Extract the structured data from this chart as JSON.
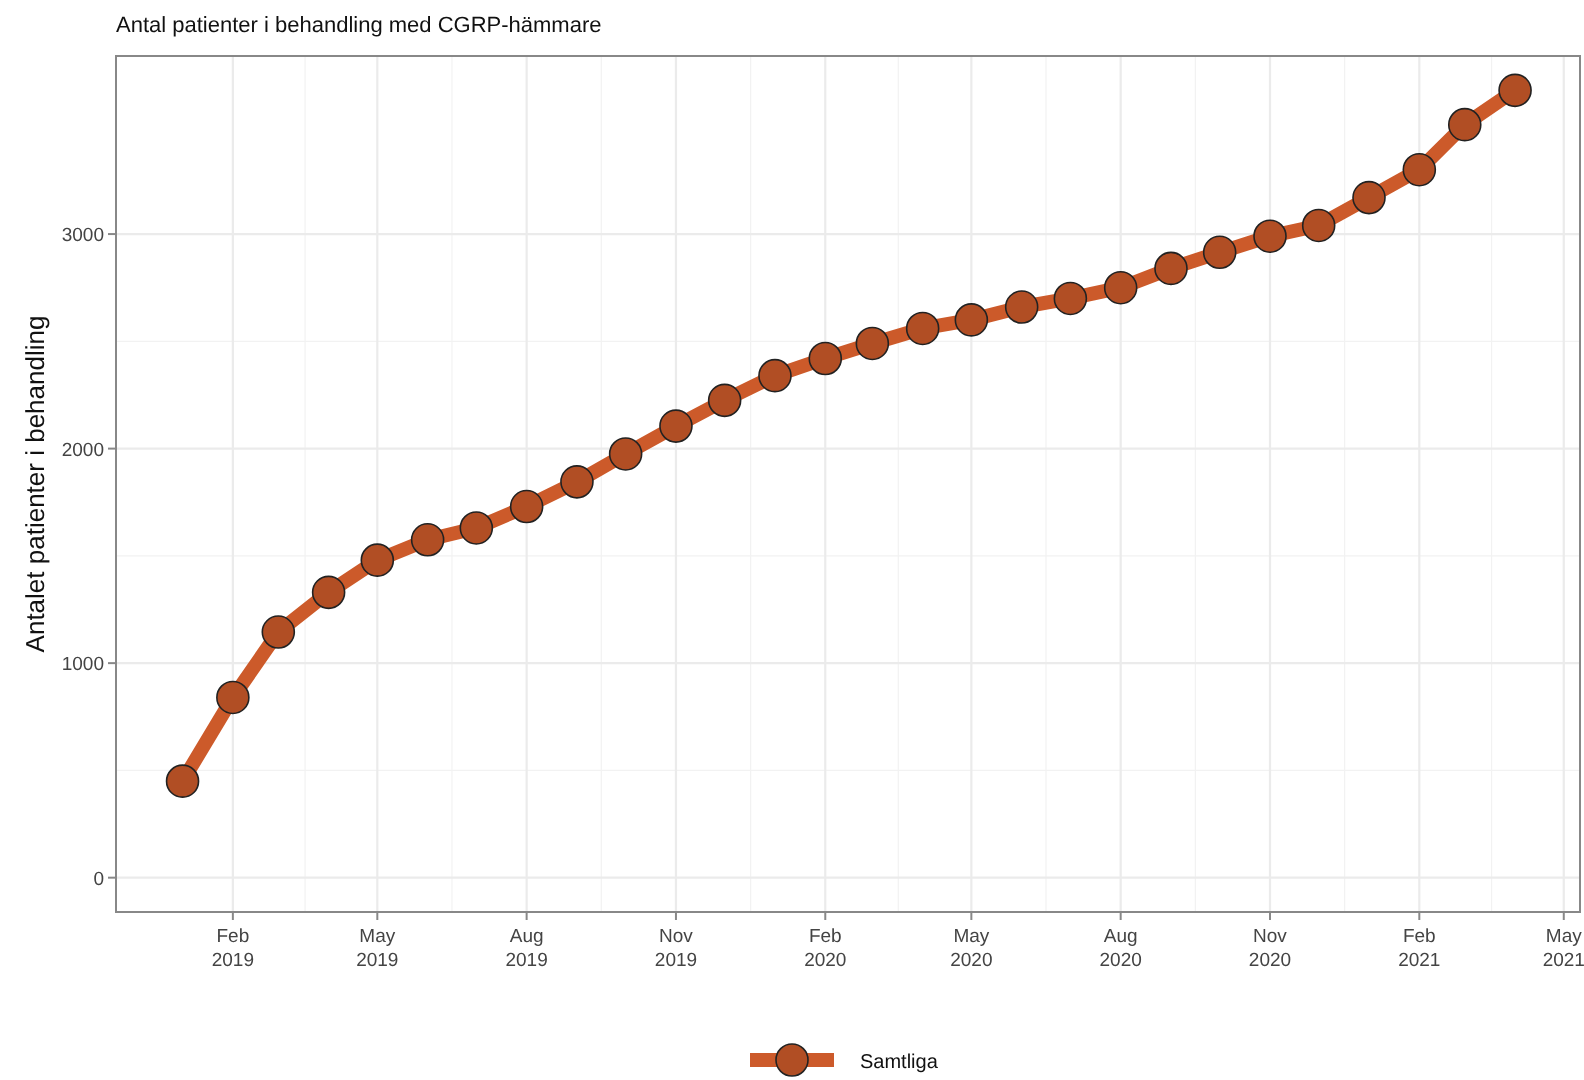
{
  "chart_data": {
    "type": "line",
    "title": "Antal patienter i behandling med CGRP-hämmare",
    "ylabel": "Antalet patienter i behandling",
    "x": [
      "2019-01",
      "2019-02",
      "2019-03",
      "2019-04",
      "2019-05",
      "2019-06",
      "2019-07",
      "2019-08",
      "2019-09",
      "2019-10",
      "2019-11",
      "2019-12",
      "2020-01",
      "2020-02",
      "2020-03",
      "2020-04",
      "2020-05",
      "2020-06",
      "2020-07",
      "2020-08",
      "2020-09",
      "2020-10",
      "2020-11",
      "2020-12",
      "2021-01",
      "2021-02",
      "2021-03",
      "2021-04"
    ],
    "series": [
      {
        "name": "Samtliga",
        "color": "#cc5a2a",
        "values": [
          450,
          840,
          1145,
          1330,
          1480,
          1575,
          1630,
          1730,
          1845,
          1975,
          2105,
          2225,
          2340,
          2420,
          2490,
          2560,
          2600,
          2660,
          2700,
          2750,
          2840,
          2915,
          2990,
          3040,
          3170,
          3300,
          3510,
          3670
        ]
      }
    ],
    "xlim": [
      "2018-11-21",
      "2021-05-11"
    ],
    "xticks": [
      {
        "value": "2019-02",
        "label": "Feb\n2019"
      },
      {
        "value": "2019-05",
        "label": "May\n2019"
      },
      {
        "value": "2019-08",
        "label": "Aug\n2019"
      },
      {
        "value": "2019-11",
        "label": "Nov\n2019"
      },
      {
        "value": "2020-02",
        "label": "Feb\n2020"
      },
      {
        "value": "2020-05",
        "label": "May\n2020"
      },
      {
        "value": "2020-08",
        "label": "Aug\n2020"
      },
      {
        "value": "2020-11",
        "label": "Nov\n2020"
      },
      {
        "value": "2021-02",
        "label": "Feb\n2021"
      },
      {
        "value": "2021-05",
        "label": "May\n2021"
      }
    ],
    "ylim": [
      -160,
      3830
    ],
    "yticks": [
      0,
      1000,
      2000,
      3000
    ],
    "grid": true,
    "legend": "bottom",
    "marker": "circle",
    "line_style": "solid"
  }
}
